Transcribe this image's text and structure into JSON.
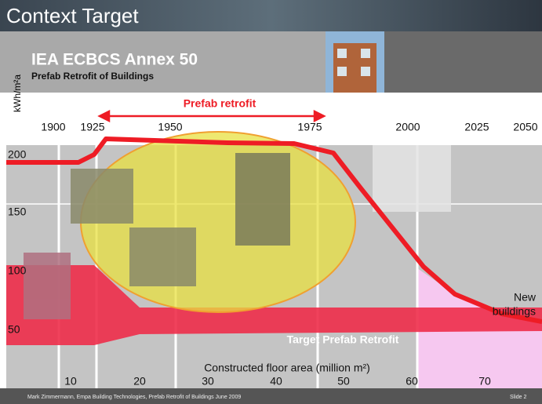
{
  "header": {
    "title": "Context Target",
    "project": "IEA ECBCS Annex 50",
    "subtitle": "Prefab Retrofit of Buildings"
  },
  "chart": {
    "y_axis_label": "kWh/m²a",
    "yticks": [
      200,
      150,
      100,
      50
    ],
    "years": [
      1900,
      1925,
      1950,
      1975,
      2000,
      2025,
      2050
    ],
    "retrofit_span_label": "Prefab retrofit",
    "target_label": "Target Prefab Retrofit",
    "new_buildings_label": [
      "New",
      "buildings"
    ],
    "x_axis_label": "Constructed floor area (million m²)",
    "area_ticks": [
      10,
      20,
      30,
      40,
      50,
      60,
      70
    ]
  },
  "footer": {
    "credit": "Mark Zimmermann, Empa Building Technologies, Prefab Retrofit of Buildings June 2009",
    "slide": "Slide 2"
  }
}
